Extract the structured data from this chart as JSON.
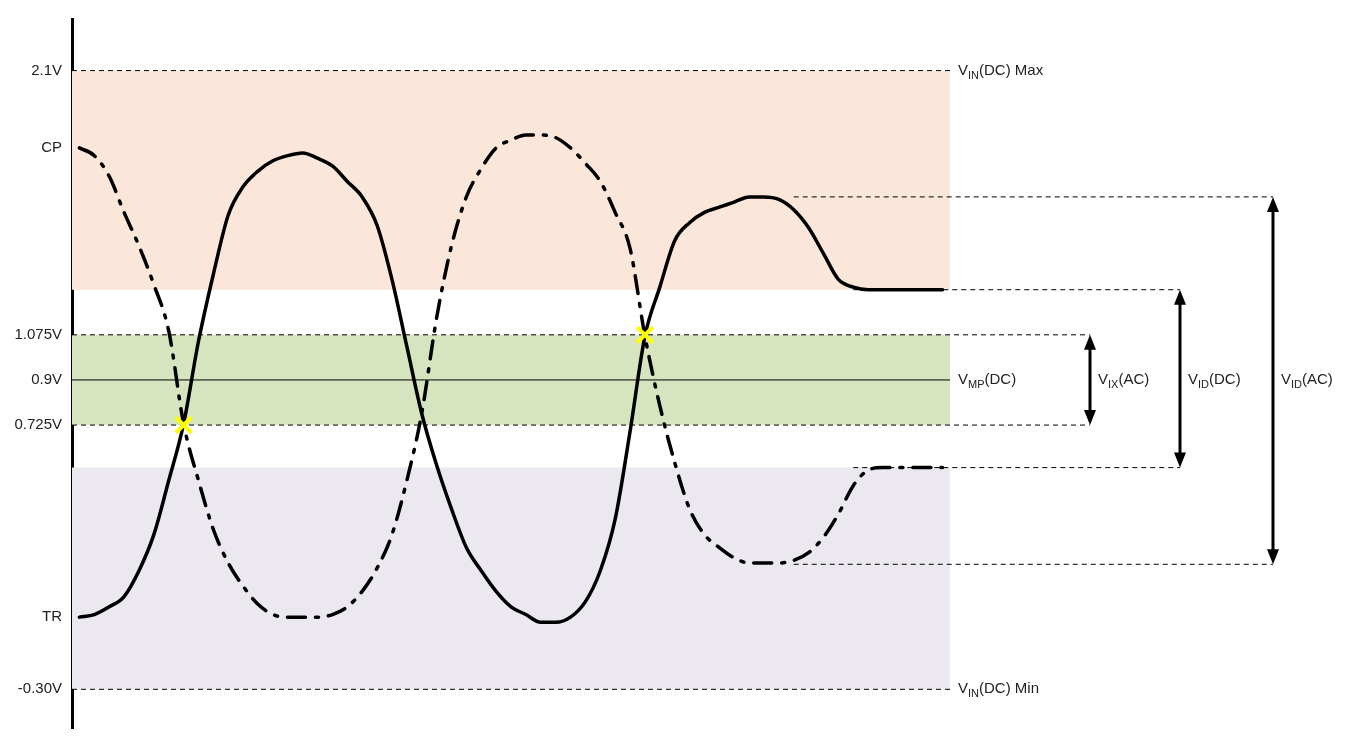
{
  "chart_data": {
    "type": "line",
    "categories": [
      null,
      null,
      null,
      null,
      null,
      null,
      null,
      null,
      null,
      null,
      null,
      null,
      null,
      null,
      null,
      null,
      null,
      null,
      null,
      null,
      null,
      null,
      null,
      null,
      null,
      null,
      null,
      null,
      null,
      null,
      null,
      null,
      null,
      null,
      null,
      null,
      null,
      null,
      null,
      null,
      null,
      null,
      null,
      null,
      null,
      null,
      null,
      null,
      null,
      null,
      null,
      null,
      null,
      null,
      null,
      null,
      null,
      null,
      null
    ],
    "series": [
      {
        "name": "TR",
        "color": "#000000",
        "line_style": "solid",
        "values": [
          -0.02,
          -0.01,
          0.02,
          0.06,
          0.16,
          0.3,
          0.51,
          0.73,
          1.05,
          1.31,
          1.54,
          1.65,
          1.71,
          1.75,
          1.77,
          1.78,
          1.76,
          1.73,
          1.67,
          1.61,
          1.5,
          1.29,
          1.03,
          0.77,
          0.57,
          0.4,
          0.25,
          0.16,
          0.08,
          0.02,
          -0.01,
          -0.04,
          -0.04,
          -0.02,
          0.04,
          0.16,
          0.36,
          0.7,
          1.07,
          1.26,
          1.44,
          1.51,
          1.55,
          1.57,
          1.59,
          1.61,
          1.61,
          1.6,
          1.56,
          1.49,
          1.39,
          1.29,
          1.26,
          1.25,
          1.25,
          1.25,
          1.25,
          1.25,
          1.25
        ]
      },
      {
        "name": "CP",
        "color": "#000000",
        "line_style": "dashed",
        "values": [
          1.8,
          1.77,
          1.69,
          1.55,
          1.42,
          1.27,
          1.09,
          0.73,
          0.51,
          0.32,
          0.19,
          0.1,
          0.03,
          -0.01,
          -0.02,
          -0.02,
          -0.02,
          -0.01,
          0.02,
          0.08,
          0.17,
          0.3,
          0.51,
          0.77,
          1.14,
          1.42,
          1.61,
          1.72,
          1.8,
          1.83,
          1.85,
          1.85,
          1.84,
          1.8,
          1.74,
          1.67,
          1.55,
          1.41,
          1.07,
          0.8,
          0.58,
          0.4,
          0.3,
          0.25,
          0.21,
          0.19,
          0.19,
          0.19,
          0.2,
          0.23,
          0.29,
          0.38,
          0.49,
          0.55,
          0.56,
          0.56,
          0.56,
          0.56,
          0.56
        ]
      },
      {
        "type": "scatter",
        "color": "#ffff00",
        "marker": "cross",
        "values": [
          null,
          null,
          null,
          null,
          null,
          null,
          null,
          0.725,
          null,
          null,
          null,
          null,
          null,
          null,
          null,
          null,
          null,
          null,
          null,
          null,
          null,
          null,
          null,
          null,
          null,
          null,
          null,
          null,
          null,
          null,
          null,
          null,
          null,
          null,
          null,
          null,
          null,
          null,
          1.075,
          null,
          null,
          null,
          null,
          null,
          null,
          null,
          null,
          null,
          null,
          null,
          null,
          null,
          null,
          null,
          null,
          null,
          null,
          null,
          null
        ]
      }
    ],
    "ylim": [
      -0.45,
      2.3
    ],
    "yticks": [
      {
        "value": 2.1,
        "label": "2.1V"
      },
      {
        "value": 1.075,
        "label": "1.075V"
      },
      {
        "value": 0.9,
        "label": "0.9V"
      },
      {
        "value": 0.725,
        "label": "0.725V"
      },
      {
        "value": -0.3,
        "label": "-0.30V"
      }
    ],
    "tick_labels": "y",
    "grid": false,
    "legend": false,
    "marker": "none",
    "bands": [
      {
        "axis": "y",
        "from": 1.25,
        "to": 2.1,
        "color": "#fbe7da"
      },
      {
        "axis": "y",
        "from": 0.725,
        "to": 1.075,
        "color": "#d7e4c0"
      },
      {
        "axis": "y",
        "from": -0.3,
        "to": 0.56,
        "color": "#ebe8ef"
      }
    ],
    "ref_lines": [
      {
        "axis": "y",
        "value": 2.1,
        "label": "V$_{IN}$(DC) Max",
        "line_style": "dashed"
      },
      {
        "axis": "y",
        "value": -0.3,
        "label": "V$_{IN}$(DC) Min",
        "line_style": "dashed"
      },
      {
        "axis": "y",
        "value": 0.9,
        "label": "V$_{MP}$(DC)",
        "line_style": "solid"
      },
      {
        "axis": "y",
        "value": 1.075,
        "line_style": "dashed"
      },
      {
        "axis": "y",
        "value": 0.725,
        "line_style": "dashed"
      },
      {
        "axis": "y",
        "value": 1.25,
        "line_style": "dashed"
      },
      {
        "axis": "y",
        "value": 0.56,
        "line_style": "dashed"
      },
      {
        "axis": "y",
        "value": 1.61,
        "line_style": "dashed"
      },
      {
        "axis": "y",
        "value": 0.185,
        "line_style": "dashed"
      }
    ],
    "annotations": [
      "V$_{IX}$(AC)",
      "V$_{ID}$(DC)",
      "V$_{ID}$(AC)"
    ]
  }
}
